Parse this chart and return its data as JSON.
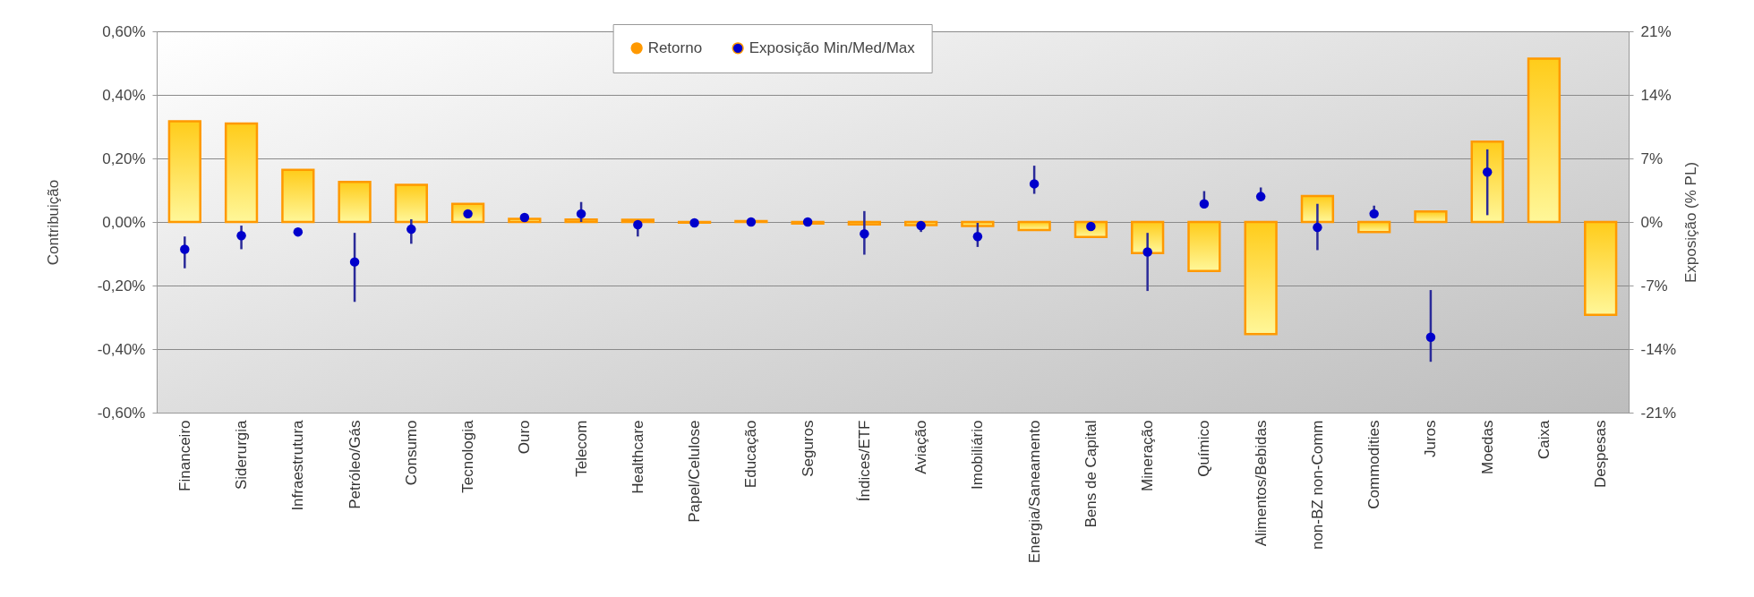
{
  "chart_data": {
    "type": "bar",
    "ylabel": "Contribuição",
    "y2label": "Exposição (% PL)",
    "categories": [
      "Financeiro",
      "Siderurgia",
      "Infraestrutura",
      "Petróleo/Gás",
      "Consumo",
      "Tecnologia",
      "Ouro",
      "Telecom",
      "Healthcare",
      "Papel/Celulose",
      "Educação",
      "Seguros",
      "Índices/ETF",
      "Aviação",
      "Imobiliário",
      "Energia/Saneamento",
      "Bens de Capital",
      "Mineração",
      "Químico",
      "Alimentos/Bebidas",
      "non-BZ non-Comm",
      "Commodities",
      "Juros",
      "Moedas",
      "Caixa",
      "Despesas"
    ],
    "series": [
      {
        "name": "Retorno",
        "color": "#ff9900",
        "values": [
          0.317,
          0.31,
          0.164,
          0.126,
          0.117,
          0.057,
          0.01,
          0.008,
          0.007,
          -0.002,
          0.003,
          -0.005,
          -0.008,
          -0.01,
          -0.013,
          -0.025,
          -0.047,
          -0.098,
          -0.154,
          -0.353,
          0.082,
          -0.032,
          0.033,
          0.253,
          0.514,
          -0.292
        ]
      },
      {
        "name": "Exposição Min/Med/Max",
        "type": "scatter",
        "axis": "y2",
        "color": "#0000cc",
        "values": [
          -3.0,
          -1.5,
          -1.1,
          -4.4,
          -0.8,
          0.9,
          0.5,
          0.9,
          -0.3,
          -0.1,
          0,
          0,
          -1.3,
          -0.4,
          -1.6,
          4.2,
          -0.5,
          -3.3,
          2.0,
          2.8,
          -0.6,
          0.9,
          -12.7,
          5.5,
          null,
          null
        ],
        "errors": [
          [
            -5.1,
            -1.6
          ],
          [
            -3.0,
            -0.4
          ],
          null,
          [
            -8.8,
            -1.2
          ],
          [
            -2.4,
            0.3
          ],
          null,
          null,
          [
            0,
            2.2
          ],
          [
            -1.6,
            0
          ],
          null,
          null,
          null,
          [
            -3.6,
            1.2
          ],
          [
            -1.1,
            0
          ],
          [
            -2.75,
            -0.1
          ],
          [
            3.1,
            6.2
          ],
          null,
          [
            -7.6,
            -1.2
          ],
          [
            1.5,
            3.4
          ],
          [
            2.3,
            3.8
          ],
          [
            -3.1,
            2.0
          ],
          [
            0.45,
            1.8
          ],
          [
            -15.4,
            -7.5
          ],
          [
            0.75,
            8.0
          ],
          null,
          null
        ]
      }
    ],
    "ylim": [
      -0.6,
      0.6
    ],
    "yticks": [
      {
        "value": -0.6,
        "label": "-0,60%"
      },
      {
        "value": -0.4,
        "label": "-0,40%"
      },
      {
        "value": -0.2,
        "label": "-0,20%"
      },
      {
        "value": 0,
        "label": "0,00%"
      },
      {
        "value": 0.2,
        "label": "0,20%"
      },
      {
        "value": 0.4,
        "label": "0,40%"
      },
      {
        "value": 0.6,
        "label": "0,60%"
      }
    ],
    "y2lim": [
      -21,
      21
    ],
    "y2ticks": [
      {
        "value": -21,
        "label": "-21%"
      },
      {
        "value": -14,
        "label": "-14%"
      },
      {
        "value": -7,
        "label": "-7%"
      },
      {
        "value": 0,
        "label": "0%"
      },
      {
        "value": 7,
        "label": "7%"
      },
      {
        "value": 14,
        "label": "14%"
      },
      {
        "value": 21,
        "label": "21%"
      }
    ],
    "grid": "y",
    "legend": "top",
    "marker": "circle"
  }
}
